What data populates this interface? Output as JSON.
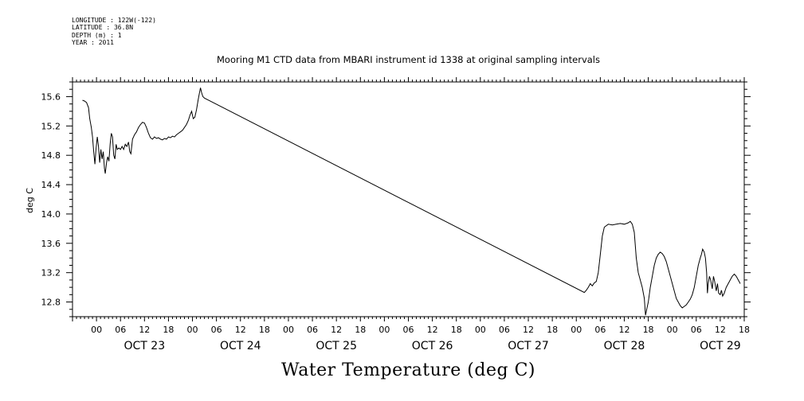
{
  "metadata": {
    "longitude": "LONGITUDE : 122W(-122)",
    "latitude": "LATITUDE : 36.8N",
    "depth": "DEPTH (m) : 1",
    "year": "YEAR : 2011"
  },
  "chart_data": {
    "type": "line",
    "title": "Mooring M1 CTD data from MBARI instrument id 1338 at original sampling intervals",
    "bottom_title": "Water Temperature (deg C)",
    "ylabel": "deg C",
    "xlabel": "",
    "ylim": [
      12.6,
      15.8
    ],
    "xlim_hours": [
      -6,
      162
    ],
    "y_ticks": [
      "15.6",
      "15.2",
      "14.8",
      "14.4",
      "14.0",
      "13.6",
      "13.2",
      "12.8"
    ],
    "hour_tick_labels": [
      "00",
      "06",
      "12",
      "18",
      "00",
      "06",
      "12",
      "18",
      "00",
      "06",
      "12",
      "18",
      "00",
      "06",
      "12",
      "18",
      "00",
      "06",
      "12",
      "18",
      "00",
      "06",
      "12",
      "18",
      "00",
      "06",
      "12",
      "18"
    ],
    "day_labels": [
      "OCT 23",
      "OCT 24",
      "OCT 25",
      "OCT 26",
      "OCT 27",
      "OCT 28",
      "OCT 29"
    ],
    "x_units": "hours since 2011-10-23 00:00",
    "series": [
      {
        "color": "#000000",
        "points": [
          [
            -3.5,
            15.55
          ],
          [
            -3.0,
            15.54
          ],
          [
            -2.5,
            15.52
          ],
          [
            -2.0,
            15.45
          ],
          [
            -1.7,
            15.3
          ],
          [
            -1.3,
            15.18
          ],
          [
            -1.0,
            15.05
          ],
          [
            -0.7,
            14.85
          ],
          [
            -0.4,
            14.68
          ],
          [
            -0.1,
            14.9
          ],
          [
            0.2,
            15.05
          ],
          [
            0.5,
            14.92
          ],
          [
            0.8,
            14.7
          ],
          [
            1.1,
            14.88
          ],
          [
            1.4,
            14.75
          ],
          [
            1.7,
            14.85
          ],
          [
            2.0,
            14.62
          ],
          [
            2.2,
            14.55
          ],
          [
            2.5,
            14.7
          ],
          [
            2.8,
            14.78
          ],
          [
            3.1,
            14.72
          ],
          [
            3.4,
            14.95
          ],
          [
            3.7,
            15.1
          ],
          [
            4.0,
            15.05
          ],
          [
            4.3,
            14.8
          ],
          [
            4.6,
            14.75
          ],
          [
            4.9,
            14.95
          ],
          [
            5.2,
            14.88
          ],
          [
            5.6,
            14.9
          ],
          [
            6.0,
            14.88
          ],
          [
            6.4,
            14.92
          ],
          [
            6.8,
            14.88
          ],
          [
            7.2,
            14.95
          ],
          [
            7.6,
            14.92
          ],
          [
            8.0,
            14.98
          ],
          [
            8.3,
            14.85
          ],
          [
            8.6,
            14.82
          ],
          [
            9.0,
            15.02
          ],
          [
            9.5,
            15.08
          ],
          [
            10.0,
            15.12
          ],
          [
            10.5,
            15.18
          ],
          [
            11.0,
            15.22
          ],
          [
            11.5,
            15.25
          ],
          [
            12.0,
            15.24
          ],
          [
            12.5,
            15.18
          ],
          [
            13.0,
            15.1
          ],
          [
            13.5,
            15.04
          ],
          [
            14.0,
            15.02
          ],
          [
            14.5,
            15.05
          ],
          [
            15.0,
            15.03
          ],
          [
            15.5,
            15.04
          ],
          [
            16.0,
            15.02
          ],
          [
            16.5,
            15.01
          ],
          [
            17.0,
            15.03
          ],
          [
            17.5,
            15.02
          ],
          [
            18.0,
            15.05
          ],
          [
            18.5,
            15.04
          ],
          [
            19.0,
            15.06
          ],
          [
            19.5,
            15.05
          ],
          [
            20.0,
            15.08
          ],
          [
            20.5,
            15.1
          ],
          [
            21.0,
            15.12
          ],
          [
            21.5,
            15.14
          ],
          [
            22.0,
            15.18
          ],
          [
            22.5,
            15.22
          ],
          [
            23.0,
            15.28
          ],
          [
            23.4,
            15.35
          ],
          [
            23.8,
            15.4
          ],
          [
            24.2,
            15.3
          ],
          [
            24.6,
            15.32
          ],
          [
            25.0,
            15.42
          ],
          [
            25.4,
            15.55
          ],
          [
            25.7,
            15.64
          ],
          [
            26.0,
            15.72
          ],
          [
            26.3,
            15.65
          ],
          [
            26.6,
            15.6
          ],
          [
            27.0,
            15.58
          ],
          [
            122.0,
            12.93
          ],
          [
            122.5,
            12.96
          ],
          [
            123.0,
            13.0
          ],
          [
            123.5,
            13.05
          ],
          [
            124.0,
            13.02
          ],
          [
            124.5,
            13.06
          ],
          [
            125.0,
            13.08
          ],
          [
            125.5,
            13.2
          ],
          [
            126.0,
            13.45
          ],
          [
            126.5,
            13.7
          ],
          [
            127.0,
            13.82
          ],
          [
            128.0,
            13.86
          ],
          [
            129.0,
            13.85
          ],
          [
            130.0,
            13.86
          ],
          [
            131.0,
            13.87
          ],
          [
            132.0,
            13.86
          ],
          [
            133.0,
            13.88
          ],
          [
            133.5,
            13.9
          ],
          [
            134.0,
            13.86
          ],
          [
            134.5,
            13.75
          ],
          [
            135.0,
            13.4
          ],
          [
            135.5,
            13.2
          ],
          [
            136.0,
            13.1
          ],
          [
            136.5,
            13.0
          ],
          [
            137.0,
            12.85
          ],
          [
            137.3,
            12.62
          ],
          [
            137.6,
            12.7
          ],
          [
            138.0,
            12.8
          ],
          [
            138.5,
            13.0
          ],
          [
            139.0,
            13.15
          ],
          [
            139.5,
            13.3
          ],
          [
            140.0,
            13.4
          ],
          [
            140.5,
            13.45
          ],
          [
            141.0,
            13.48
          ],
          [
            141.5,
            13.46
          ],
          [
            142.0,
            13.42
          ],
          [
            142.5,
            13.35
          ],
          [
            143.0,
            13.25
          ],
          [
            143.5,
            13.15
          ],
          [
            144.0,
            13.05
          ],
          [
            144.5,
            12.95
          ],
          [
            145.0,
            12.85
          ],
          [
            145.5,
            12.8
          ],
          [
            146.0,
            12.75
          ],
          [
            146.5,
            12.72
          ],
          [
            147.0,
            12.74
          ],
          [
            147.5,
            12.76
          ],
          [
            148.0,
            12.8
          ],
          [
            148.5,
            12.84
          ],
          [
            149.0,
            12.9
          ],
          [
            149.5,
            13.0
          ],
          [
            150.0,
            13.15
          ],
          [
            150.5,
            13.3
          ],
          [
            151.0,
            13.4
          ],
          [
            151.3,
            13.45
          ],
          [
            151.6,
            13.52
          ],
          [
            152.0,
            13.48
          ],
          [
            152.3,
            13.4
          ],
          [
            152.6,
            13.2
          ],
          [
            152.8,
            12.92
          ],
          [
            153.0,
            13.05
          ],
          [
            153.3,
            13.15
          ],
          [
            153.6,
            13.1
          ],
          [
            154.0,
            12.98
          ],
          [
            154.3,
            13.15
          ],
          [
            154.6,
            13.08
          ],
          [
            155.0,
            12.95
          ],
          [
            155.3,
            13.05
          ],
          [
            155.6,
            12.92
          ],
          [
            156.0,
            12.9
          ],
          [
            156.3,
            12.96
          ],
          [
            156.6,
            12.88
          ],
          [
            157.0,
            12.92
          ],
          [
            157.5,
            13.0
          ],
          [
            158.0,
            13.05
          ],
          [
            158.5,
            13.1
          ],
          [
            159.0,
            13.15
          ],
          [
            159.5,
            13.18
          ],
          [
            160.0,
            13.15
          ],
          [
            160.5,
            13.1
          ],
          [
            161.0,
            13.05
          ]
        ]
      }
    ]
  }
}
